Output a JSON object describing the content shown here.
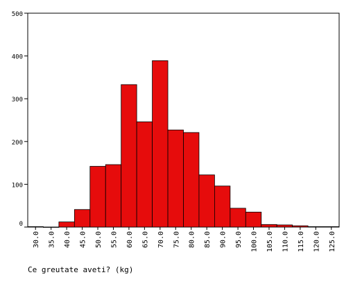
{
  "chart_data": {
    "type": "bar",
    "title": "",
    "xlabel": "Ce greutate aveti? (kg)",
    "ylabel": "",
    "ylim": [
      0,
      500
    ],
    "yticks": [
      0,
      100,
      200,
      300,
      400,
      500
    ],
    "x_ticks": [
      "30.0",
      "35.0",
      "40.0",
      "45.0",
      "50.0",
      "55.0",
      "60.0",
      "65.0",
      "70.0",
      "75.0",
      "80.0",
      "85.0",
      "90.0",
      "95.0",
      "100.0",
      "105.0",
      "110.0",
      "115.0",
      "120.0",
      "125.0"
    ],
    "bins": [
      {
        "from": 30,
        "to": 35,
        "value": 1
      },
      {
        "from": 35,
        "to": 40,
        "value": 0
      },
      {
        "from": 40,
        "to": 45,
        "value": 12
      },
      {
        "from": 45,
        "to": 50,
        "value": 41
      },
      {
        "from": 50,
        "to": 55,
        "value": 142
      },
      {
        "from": 55,
        "to": 60,
        "value": 146
      },
      {
        "from": 60,
        "to": 65,
        "value": 333
      },
      {
        "from": 65,
        "to": 70,
        "value": 246
      },
      {
        "from": 70,
        "to": 75,
        "value": 389
      },
      {
        "from": 75,
        "to": 80,
        "value": 227
      },
      {
        "from": 80,
        "to": 85,
        "value": 221
      },
      {
        "from": 85,
        "to": 90,
        "value": 122
      },
      {
        "from": 90,
        "to": 95,
        "value": 96
      },
      {
        "from": 95,
        "to": 100,
        "value": 44
      },
      {
        "from": 100,
        "to": 105,
        "value": 35
      },
      {
        "from": 105,
        "to": 110,
        "value": 6
      },
      {
        "from": 110,
        "to": 115,
        "value": 5
      },
      {
        "from": 115,
        "to": 120,
        "value": 3
      },
      {
        "from": 120,
        "to": 125,
        "value": 1
      },
      {
        "from": 125,
        "to": 130,
        "value": 1
      }
    ],
    "bar_color": "#e60c0c",
    "grid": false
  }
}
